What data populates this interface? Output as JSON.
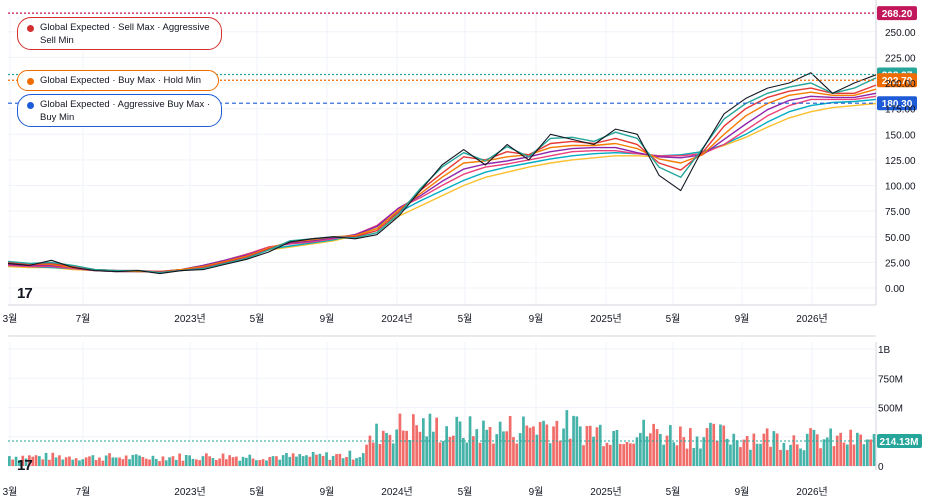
{
  "legend": [
    {
      "label": "Global Expected · Sell Max · Aggressive Sell Min",
      "color": "#d32f2f"
    },
    {
      "label": "Global Expected · Buy Max · Hold Min",
      "color": "#ef6c00"
    },
    {
      "label": "Global Expected · Aggressive Buy Max · Buy Min",
      "color": "#1e5bd6"
    }
  ],
  "logo_text": "17",
  "chart_data": [
    {
      "type": "line",
      "title": "",
      "x_tick_labels": [
        "3월",
        "7월",
        "2023년",
        "5월",
        "9월",
        "2024년",
        "5월",
        "9월",
        "2025년",
        "5월",
        "9월",
        "2026년"
      ],
      "y_tick_labels": [
        "250.00",
        "225.00",
        "200.00",
        "175.00",
        "150.00",
        "125.00",
        "100.00",
        "75.00",
        "50.00",
        "25.00",
        "0.00"
      ],
      "ylim": [
        -10,
        270
      ],
      "price_levels": [
        {
          "label": "268.20",
          "value": 268.2,
          "color": "#c2185b",
          "style": "dotted"
        },
        {
          "label": "208.27",
          "value": 208.27,
          "color": "#26a69a",
          "style": "dotted"
        },
        {
          "label": "202.70",
          "value": 202.7,
          "color": "#ef6c00",
          "style": "dotted"
        },
        {
          "label": "180.30",
          "value": 180.3,
          "color": "#1e5bd6",
          "style": "dashed"
        }
      ],
      "series": [
        {
          "color": "#131722",
          "values": [
            24,
            22,
            27,
            20,
            17,
            16,
            17,
            14,
            17,
            18,
            23,
            28,
            35,
            45,
            48,
            50,
            48,
            52,
            70,
            95,
            120,
            135,
            120,
            140,
            125,
            150,
            145,
            140,
            155,
            150,
            110,
            95,
            135,
            170,
            185,
            195,
            200,
            210,
            190,
            200,
            208
          ]
        },
        {
          "color": "#26a69a",
          "values": [
            26,
            24,
            25,
            22,
            18,
            17,
            17,
            15,
            17,
            19,
            24,
            29,
            37,
            46,
            48,
            50,
            49,
            54,
            72,
            97,
            118,
            132,
            124,
            138,
            128,
            146,
            147,
            143,
            152,
            146,
            118,
            108,
            136,
            165,
            180,
            190,
            196,
            200,
            190,
            195,
            205
          ]
        },
        {
          "color": "#e53935",
          "values": [
            25,
            23,
            24,
            21,
            18,
            17,
            17,
            16,
            17,
            20,
            25,
            30,
            38,
            45,
            48,
            50,
            50,
            56,
            74,
            95,
            112,
            128,
            125,
            133,
            130,
            141,
            143,
            141,
            146,
            140,
            122,
            115,
            132,
            158,
            175,
            186,
            192,
            195,
            190,
            190,
            198
          ]
        },
        {
          "color": "#f57c00",
          "values": [
            24,
            23,
            23,
            20,
            18,
            17,
            16,
            16,
            18,
            21,
            26,
            31,
            39,
            45,
            47,
            50,
            51,
            58,
            76,
            92,
            108,
            122,
            124,
            128,
            130,
            137,
            139,
            139,
            141,
            136,
            126,
            122,
            130,
            150,
            168,
            180,
            188,
            191,
            188,
            188,
            194
          ]
        },
        {
          "color": "#8e24aa",
          "values": [
            23,
            22,
            22,
            20,
            18,
            17,
            16,
            16,
            18,
            22,
            27,
            32,
            39,
            44,
            46,
            49,
            52,
            60,
            78,
            90,
            104,
            116,
            121,
            124,
            128,
            133,
            136,
            137,
            137,
            132,
            128,
            127,
            130,
            145,
            160,
            174,
            183,
            187,
            186,
            186,
            190
          ]
        },
        {
          "color": "#ec407a",
          "values": [
            22,
            21,
            21,
            19,
            17,
            16,
            16,
            16,
            18,
            22,
            27,
            33,
            40,
            43,
            45,
            48,
            52,
            61,
            78,
            88,
            100,
            111,
            118,
            121,
            125,
            129,
            133,
            134,
            134,
            131,
            129,
            129,
            131,
            140,
            154,
            168,
            178,
            184,
            184,
            184,
            187
          ]
        },
        {
          "color": "#00acc1",
          "values": [
            22,
            21,
            20,
            19,
            17,
            16,
            16,
            16,
            18,
            22,
            27,
            33,
            38,
            41,
            44,
            47,
            52,
            60,
            74,
            85,
            95,
            105,
            113,
            118,
            122,
            126,
            129,
            131,
            132,
            131,
            129,
            130,
            133,
            140,
            150,
            162,
            172,
            178,
            181,
            182,
            184
          ]
        },
        {
          "color": "#fbc02d",
          "values": [
            21,
            20,
            20,
            18,
            17,
            16,
            16,
            16,
            18,
            22,
            26,
            32,
            37,
            40,
            43,
            46,
            51,
            58,
            70,
            80,
            90,
            100,
            108,
            113,
            118,
            122,
            125,
            127,
            129,
            129,
            128,
            130,
            133,
            139,
            147,
            157,
            166,
            172,
            176,
            178,
            180
          ]
        }
      ]
    },
    {
      "type": "bar",
      "title": "",
      "x_tick_labels": [
        "3월",
        "7월",
        "2023년",
        "5월",
        "9월",
        "2024년",
        "5월",
        "9월",
        "2025년",
        "5월",
        "9월",
        "2026년"
      ],
      "y_tick_labels": [
        "1B",
        "750M",
        "500M",
        "250M",
        "0"
      ],
      "ylim": [
        0,
        1000
      ],
      "unit": "M",
      "current_value_label": "214.13M",
      "current_value": 214.13,
      "series": [
        {
          "values": [
            85,
            80,
            80,
            78,
            75,
            78,
            72,
            75,
            78,
            80,
            85,
            82,
            80,
            82,
            80,
            85,
            90,
            95,
            300,
            330,
            340,
            320,
            300,
            300,
            310,
            330,
            360,
            340,
            310,
            300,
            300,
            290,
            280,
            270,
            260,
            260,
            250,
            245,
            240,
            230,
            225,
            220,
            214
          ]
        }
      ]
    }
  ]
}
